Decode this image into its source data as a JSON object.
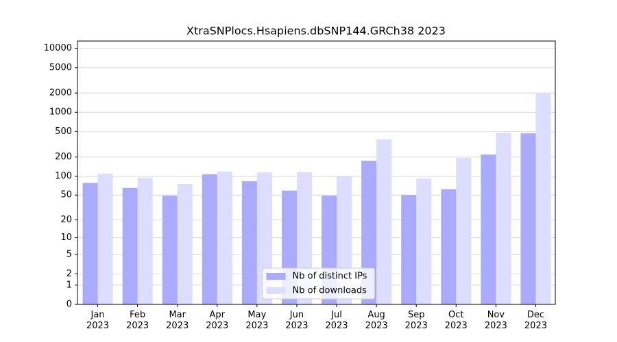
{
  "chart_data": {
    "type": "bar",
    "title": "XtraSNPlocs.Hsapiens.dbSNP144.GRCh38 2023",
    "categories": [
      "Jan\n2023",
      "Feb\n2023",
      "Mar\n2023",
      "Apr\n2023",
      "May\n2023",
      "Jun\n2023",
      "Jul\n2023",
      "Aug\n2023",
      "Sep\n2023",
      "Oct\n2023",
      "Nov\n2023",
      "Dec\n2023"
    ],
    "series": [
      {
        "name": "Nb of distinct IPs",
        "color": "#aaaaff",
        "values": [
          78,
          65,
          49,
          107,
          83,
          59,
          49,
          175,
          50,
          62,
          219,
          471
        ]
      },
      {
        "name": "Nb of downloads",
        "color": "#ddddff",
        "values": [
          109,
          94,
          75,
          118,
          115,
          115,
          101,
          377,
          92,
          193,
          482,
          1966
        ]
      }
    ],
    "yscale": "symlog",
    "ylim": [
      0,
      13000
    ],
    "yticks": [
      0,
      1,
      2,
      5,
      10,
      20,
      50,
      100,
      200,
      500,
      1000,
      2000,
      5000,
      10000
    ],
    "grid": true,
    "legend": "lower center"
  }
}
